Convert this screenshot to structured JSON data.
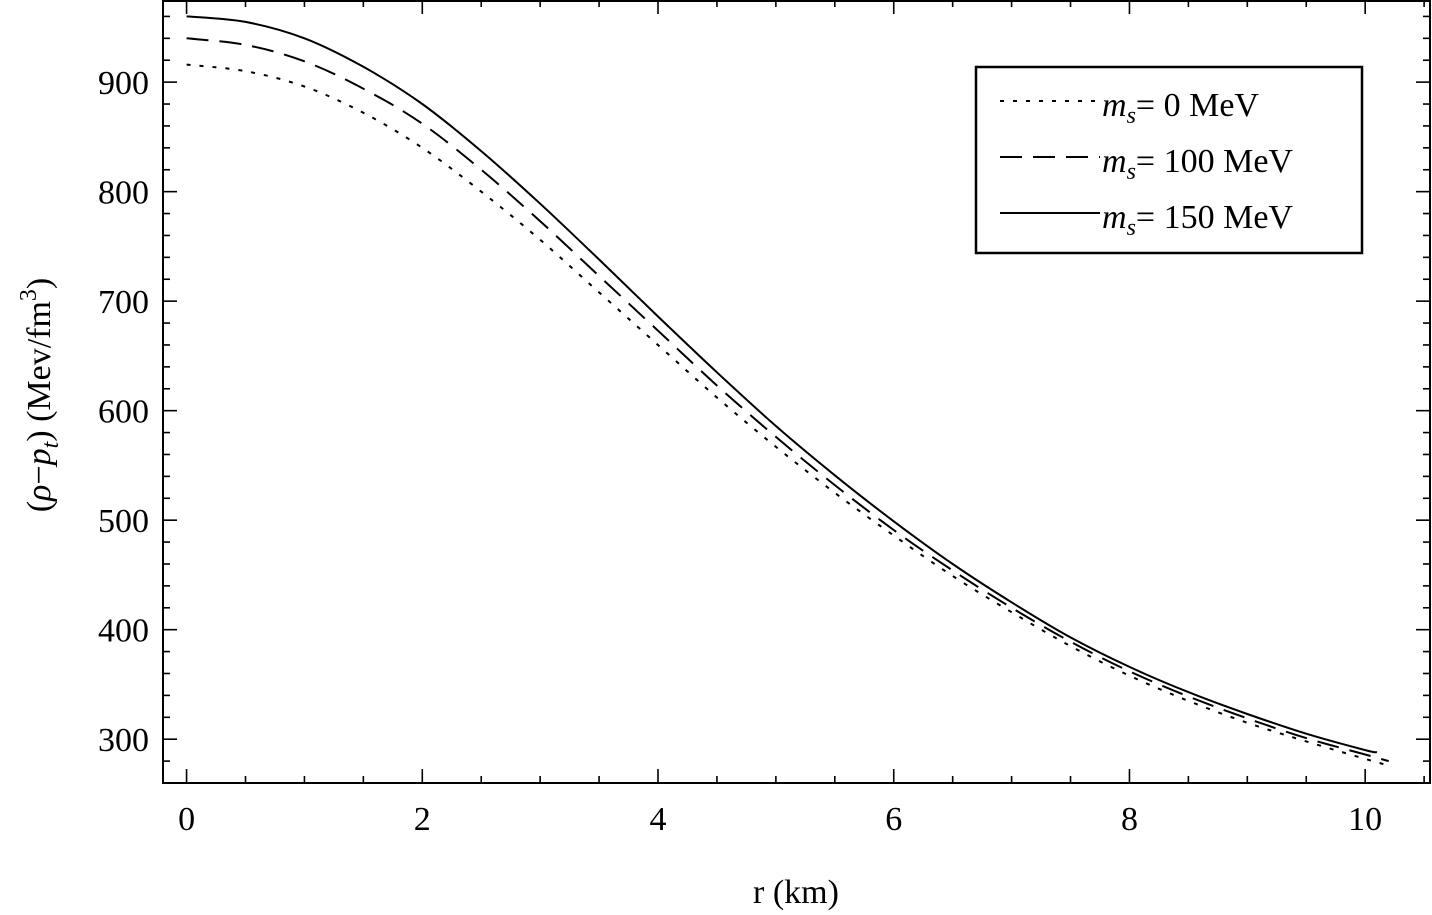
{
  "chart_data": {
    "type": "line",
    "xlabel": "r (km)",
    "ylabel": {
      "open": "(",
      "rho": "ρ",
      "minus": "−",
      "p": "p",
      "p_sub": "t",
      "close": ")",
      "units": "(Mev/fm",
      "units_sup": "3",
      "units_close": ")"
    },
    "xlim": [
      -0.2,
      10.55
    ],
    "ylim": [
      260,
      975
    ],
    "x_ticks": [
      0,
      2,
      4,
      6,
      8,
      10
    ],
    "x_tick_labels": [
      "0",
      "2",
      "4",
      "6",
      "8",
      "10"
    ],
    "y_ticks": [
      300,
      400,
      500,
      600,
      700,
      800,
      900
    ],
    "y_tick_labels": [
      "300",
      "400",
      "500",
      "600",
      "700",
      "800",
      "900"
    ],
    "grid": false,
    "legend_position": "top-right",
    "series": [
      {
        "name": "m_s = 0 MeV",
        "legend": {
          "m": "m",
          "sub": "s",
          "rest": "= 0 MeV"
        },
        "style": "dotted",
        "x": [
          0,
          0.5,
          1,
          1.5,
          2,
          2.5,
          3,
          3.5,
          4,
          4.5,
          5,
          5.5,
          6,
          6.5,
          7,
          7.5,
          8,
          8.5,
          9,
          9.5,
          10,
          10.2
        ],
        "y": [
          916,
          910,
          896,
          872,
          840,
          800,
          756,
          708,
          660,
          612,
          567,
          525,
          486,
          449,
          416,
          385,
          358,
          335,
          315,
          298,
          282,
          276
        ]
      },
      {
        "name": "m_s = 100 MeV",
        "legend": {
          "m": "m",
          "sub": "s",
          "rest": "= 100 MeV"
        },
        "style": "dashed",
        "x": [
          0,
          0.5,
          1,
          1.5,
          2,
          2.5,
          3,
          3.5,
          4,
          4.5,
          5,
          5.5,
          6,
          6.5,
          7,
          7.5,
          8,
          8.5,
          9,
          9.5,
          10,
          10.2
        ],
        "y": [
          940,
          934,
          919,
          894,
          862,
          820,
          773,
          723,
          673,
          623,
          576,
          532,
          491,
          454,
          420,
          389,
          362,
          339,
          319,
          301,
          286,
          280
        ]
      },
      {
        "name": "m_s = 150 MeV",
        "legend": {
          "m": "m",
          "sub": "s",
          "rest": "= 150 MeV"
        },
        "style": "solid",
        "x": [
          0,
          0.5,
          1,
          1.5,
          2,
          2.5,
          3,
          3.5,
          4,
          4.5,
          5,
          5.5,
          6,
          6.5,
          7,
          7.5,
          8,
          8.5,
          9,
          9.5,
          10,
          10.1
        ],
        "y": [
          960,
          955,
          940,
          914,
          880,
          837,
          789,
          738,
          686,
          635,
          586,
          541,
          499,
          460,
          425,
          393,
          366,
          343,
          323,
          305,
          290,
          288
        ]
      }
    ]
  }
}
